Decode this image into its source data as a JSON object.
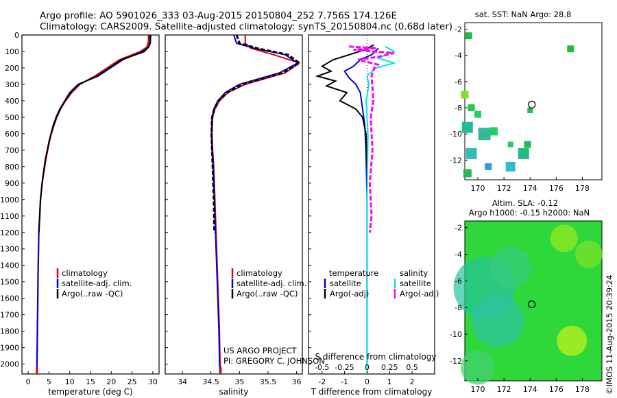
{
  "header": {
    "line1": "Argo profile: AO 5901026_333 03-Aug-2015 20150804_252 7.756S 174.126E",
    "line2": "Climatology: CARS2009. Satellite-adjusted climatology: synTS_20150804.nc (0.68d later)"
  },
  "depth_axis": {
    "ylim": [
      0,
      2060
    ],
    "ticks": [
      "0",
      "100",
      "200",
      "300",
      "400",
      "500",
      "600",
      "700",
      "800",
      "900",
      "1000",
      "1100",
      "1200",
      "1300",
      "1400",
      "1500",
      "1600",
      "1700",
      "1800",
      "1900",
      "2000"
    ]
  },
  "colors": {
    "climatology": "#e00000",
    "satellite": "#0000dd",
    "argo": "#000000",
    "sal_satellite": "#00e5e5",
    "sal_argo": "#ff00ff"
  },
  "chart_data": [
    {
      "type": "line",
      "name": "temperature",
      "xlabel": "temperature (deg C)",
      "xlim": [
        -1.5,
        31.5
      ],
      "xticks": [
        "0",
        "5",
        "10",
        "15",
        "20",
        "25",
        "30"
      ],
      "legend": [
        "climatology",
        "satellite-adj. clim.",
        "Argo(..raw -QC)"
      ],
      "series": [
        {
          "name": "climatology",
          "color": "#e00000",
          "x": [
            29.0,
            28.9,
            28.5,
            27.0,
            22.0,
            16.0,
            12.5,
            10.5,
            9.0,
            7.8,
            6.9,
            6.2,
            5.6,
            5.1,
            4.7,
            4.3,
            4.0,
            3.7,
            3.4,
            3.2,
            3.0,
            2.8,
            2.6,
            2.45,
            2.35,
            2.25,
            2.15,
            2.1
          ],
          "y": [
            0,
            50,
            75,
            100,
            150,
            250,
            300,
            350,
            400,
            450,
            500,
            550,
            600,
            650,
            700,
            750,
            800,
            850,
            900,
            950,
            1000,
            1100,
            1200,
            1400,
            1600,
            1800,
            2000,
            2060
          ]
        },
        {
          "name": "satellite-adj. clim.",
          "color": "#0000dd",
          "x": [
            29.5,
            29.4,
            29.0,
            27.5,
            22.8,
            16.8,
            12.0,
            10.0,
            8.8,
            7.6,
            6.7,
            6.0,
            5.5,
            5.0,
            4.6,
            4.2,
            3.9,
            3.6,
            3.35,
            3.15,
            2.95,
            2.75,
            2.55,
            2.4,
            2.3,
            2.2,
            2.1,
            2.05
          ],
          "y": [
            0,
            50,
            75,
            100,
            150,
            250,
            300,
            350,
            400,
            450,
            500,
            550,
            600,
            650,
            700,
            750,
            800,
            850,
            900,
            950,
            1000,
            1100,
            1200,
            1400,
            1600,
            1800,
            2000,
            2060
          ]
        },
        {
          "name": "Argo(..raw -QC)",
          "color": "#000000",
          "x": [
            29.3,
            29.3,
            29.0,
            28.0,
            22.5,
            16.5,
            12.2,
            10.2,
            8.9,
            7.7,
            6.8,
            6.1,
            5.5,
            5.0,
            4.6,
            4.2,
            3.9,
            3.6,
            3.35,
            3.15,
            2.95,
            2.75,
            2.6
          ],
          "y": [
            0,
            40,
            70,
            100,
            150,
            250,
            300,
            350,
            400,
            450,
            500,
            550,
            600,
            650,
            700,
            750,
            800,
            850,
            900,
            950,
            1000,
            1100,
            1200
          ]
        }
      ]
    },
    {
      "type": "line",
      "name": "salinity",
      "xlabel": "salinity",
      "xlim": [
        33.7,
        36.1
      ],
      "xticks": [
        "34",
        "34.5",
        "35",
        "35.5",
        "36"
      ],
      "legend": [
        "climatology",
        "satellite-adj. clim.",
        "Argo(..raw -QC)"
      ],
      "series": [
        {
          "name": "climatology",
          "color": "#e00000",
          "x": [
            35.1,
            35.1,
            35.2,
            35.6,
            36.05,
            35.8,
            35.1,
            34.8,
            34.65,
            34.57,
            34.53,
            34.52,
            34.53,
            34.55,
            34.57,
            34.59,
            34.61,
            34.63,
            34.65,
            34.66,
            34.67
          ],
          "y": [
            0,
            50,
            80,
            120,
            170,
            230,
            300,
            350,
            400,
            450,
            500,
            600,
            700,
            800,
            1000,
            1200,
            1400,
            1600,
            1800,
            2000,
            2060
          ]
        },
        {
          "name": "satellite-adj. clim.",
          "color": "#0000dd",
          "x": [
            34.9,
            34.95,
            35.25,
            35.8,
            36.02,
            35.7,
            35.0,
            34.75,
            34.62,
            34.55,
            34.52,
            34.51,
            34.52,
            34.54,
            34.56,
            34.58,
            34.6,
            34.62,
            34.64,
            34.65,
            34.66
          ],
          "y": [
            0,
            50,
            80,
            120,
            170,
            230,
            300,
            350,
            400,
            450,
            500,
            600,
            700,
            800,
            1000,
            1200,
            1400,
            1600,
            1800,
            2000,
            2060
          ]
        },
        {
          "name": "Argo(..raw -QC)",
          "color": "#000000",
          "x": [
            34.95,
            35.0,
            35.3,
            35.85,
            36.05,
            35.75,
            35.05,
            34.78,
            34.63,
            34.56,
            34.52,
            34.51,
            34.52,
            34.53,
            34.55,
            34.56
          ],
          "y": [
            0,
            50,
            80,
            120,
            170,
            230,
            300,
            350,
            400,
            450,
            500,
            600,
            700,
            800,
            1000,
            1200
          ]
        }
      ]
    },
    {
      "type": "line",
      "name": "difference",
      "xlabel_top": "S difference from climatology",
      "xlabel_bottom": "T difference from climatology",
      "xlim": [
        -2.6,
        3.0
      ],
      "xticks_T": [
        "-2",
        "-1",
        "0",
        "1",
        "2"
      ],
      "xticks_S": [
        "-0.5",
        "-0.25",
        "0",
        "0.25",
        "0.5"
      ],
      "legend_headers": [
        "temperature",
        "salinity"
      ],
      "legend": [
        "satellite",
        "Argo(-adj)",
        "satellite",
        "Argo(-adj)"
      ],
      "series": [
        {
          "name": "T satellite",
          "color": "#0000dd",
          "x": [
            0.5,
            0.2,
            -0.3,
            -0.6,
            -1.0,
            -0.8,
            -0.5,
            -0.3,
            -0.2,
            -0.1,
            -0.05,
            0.0,
            0.0,
            0.0
          ],
          "y": [
            80,
            120,
            150,
            190,
            220,
            260,
            300,
            350,
            450,
            550,
            700,
            1000,
            1500,
            2000
          ]
        },
        {
          "name": "T Argo(-adj)",
          "color": "#000000",
          "x": [
            0.3,
            -0.1,
            -0.8,
            -1.5,
            -2.0,
            -1.6,
            -2.2,
            -1.4,
            -1.8,
            -0.9,
            -1.2,
            -0.5,
            -0.2,
            -0.05,
            0.0
          ],
          "y": [
            60,
            90,
            120,
            150,
            190,
            220,
            250,
            280,
            310,
            350,
            400,
            450,
            500,
            600,
            800
          ]
        },
        {
          "name": "S satellite",
          "color": "#00e5e5",
          "x": [
            0.2,
            0.3,
            0.12,
            0.3,
            0.1,
            0.0,
            0.02,
            -0.01,
            0.01,
            0.0,
            0.0,
            0.0
          ],
          "y": [
            70,
            100,
            140,
            170,
            200,
            250,
            300,
            400,
            600,
            1000,
            1600,
            2060
          ]
        },
        {
          "name": "S Argo(-adj)",
          "color": "#ff00ff",
          "x": [
            -0.2,
            0.1,
            -0.15,
            0.3,
            0.15,
            -0.1,
            0.12,
            0.08,
            0.05,
            0.07,
            0.04,
            0.06,
            0.03,
            0.05,
            0.03
          ],
          "y": [
            70,
            80,
            90,
            110,
            130,
            150,
            180,
            200,
            250,
            400,
            500,
            700,
            900,
            1100,
            1200
          ]
        }
      ]
    },
    {
      "type": "heatmap",
      "name": "sst_map",
      "title": "sat. SST: NaN Argo: 28.8",
      "xlim": [
        169,
        179.5
      ],
      "ylim": [
        -13.5,
        -1.5
      ],
      "xticks": [
        "170",
        "172",
        "174",
        "176",
        "178"
      ],
      "yticks": [
        "-2",
        "-4",
        "-6",
        "-8",
        "-10",
        "-12"
      ],
      "argo_position": {
        "lon": 174.126,
        "lat": -7.756
      }
    },
    {
      "type": "heatmap",
      "name": "sla_map",
      "title_line1": "Altim. SLA: -0.12",
      "title_line2": "Argo h1000: -0.15 h2000: NaN",
      "xlim": [
        169,
        179.5
      ],
      "ylim": [
        -13.5,
        -1.5
      ],
      "xticks": [
        "170",
        "172",
        "174",
        "176",
        "178"
      ],
      "yticks": [
        "-2",
        "-4",
        "-6",
        "-8",
        "-10",
        "-12"
      ],
      "argo_position": {
        "lon": 174.126,
        "lat": -7.756
      }
    }
  ],
  "footer": {
    "project_line1": "US ARGO PROJECT",
    "project_line2": "PI: GREGORY C. JOHNSON",
    "stamp": "©IMOS 11-Aug-2015 20:39:24"
  }
}
